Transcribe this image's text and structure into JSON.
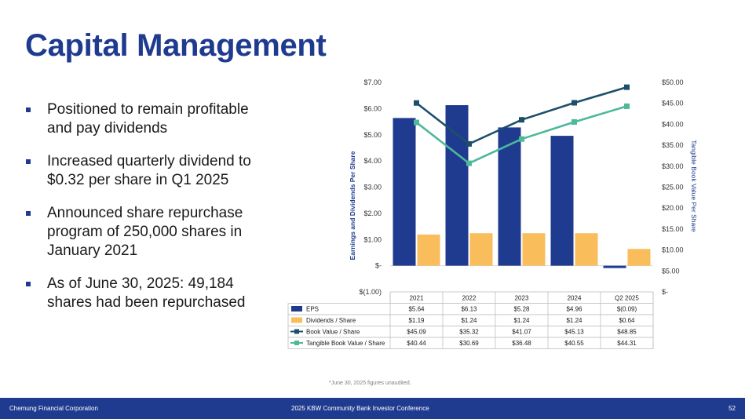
{
  "page": {
    "title": "Capital Management",
    "bullets": [
      "Positioned to remain profitable and pay dividends",
      "Increased quarterly dividend to $0.32 per share in Q1 2025",
      "Announced share repurchase program of 250,000 shares in January 2021",
      "As of June 30, 2025:  49,184 shares had been repurchased"
    ],
    "footnote": "*June 30, 2025 figures unaudited.",
    "footer": {
      "left": "Chemung Financial Corporation",
      "center": "2025 KBW Community Bank Investor Conference",
      "page_number": "52"
    }
  },
  "colors": {
    "brand": "#1f3b8f",
    "eps": "#1f3b8f",
    "dividends": "#f9bd5c",
    "book_value": "#1d4f6a",
    "tangible_book_value": "#4db89a"
  },
  "chart_data": {
    "type": "bar",
    "categories": [
      "2021",
      "2022",
      "2023",
      "2024",
      "Q2 2025"
    ],
    "series": [
      {
        "name": "EPS",
        "kind": "bar",
        "axis": "left",
        "values": [
          5.64,
          6.13,
          5.28,
          4.96,
          -0.09
        ],
        "labels": [
          "$5.64",
          "$6.13",
          "$5.28",
          "$4.96",
          "$(0.09)"
        ]
      },
      {
        "name": "Dividends / Share",
        "kind": "bar",
        "axis": "left",
        "values": [
          1.19,
          1.24,
          1.24,
          1.24,
          0.64
        ],
        "labels": [
          "$1.19",
          "$1.24",
          "$1.24",
          "$1.24",
          "$0.64"
        ]
      },
      {
        "name": "Book Value / Share",
        "kind": "line",
        "axis": "right",
        "values": [
          45.09,
          35.32,
          41.07,
          45.13,
          48.85
        ],
        "labels": [
          "$45.09",
          "$35.32",
          "$41.07",
          "$45.13",
          "$48.85"
        ]
      },
      {
        "name": "Tangible Book Value / Share",
        "kind": "line",
        "axis": "right",
        "values": [
          40.44,
          30.69,
          36.48,
          40.55,
          44.31
        ],
        "labels": [
          "$40.44",
          "$30.69",
          "$36.48",
          "$40.55",
          "$44.31"
        ]
      }
    ],
    "ylabel": "Earnings and Dividends Per Share",
    "y2label": "Tangible Book Value Per Share",
    "ylim": [
      -1,
      7
    ],
    "y2lim": [
      0,
      50
    ],
    "yticks": [
      -1,
      0,
      1,
      2,
      3,
      4,
      5,
      6,
      7
    ],
    "y2ticks": [
      0,
      5,
      10,
      15,
      20,
      25,
      30,
      35,
      40,
      45,
      50
    ],
    "ytick_labels": [
      "$(1.00)",
      "$-",
      "$1.00",
      "$2.00",
      "$3.00",
      "$4.00",
      "$5.00",
      "$6.00",
      "$7.00"
    ],
    "y2tick_labels": [
      "$-",
      "$5.00",
      "$10.00",
      "$15.00",
      "$20.00",
      "$25.00",
      "$30.00",
      "$35.00",
      "$40.00",
      "$45.00",
      "$50.00"
    ],
    "grid": false,
    "legend": "data table below chart"
  }
}
